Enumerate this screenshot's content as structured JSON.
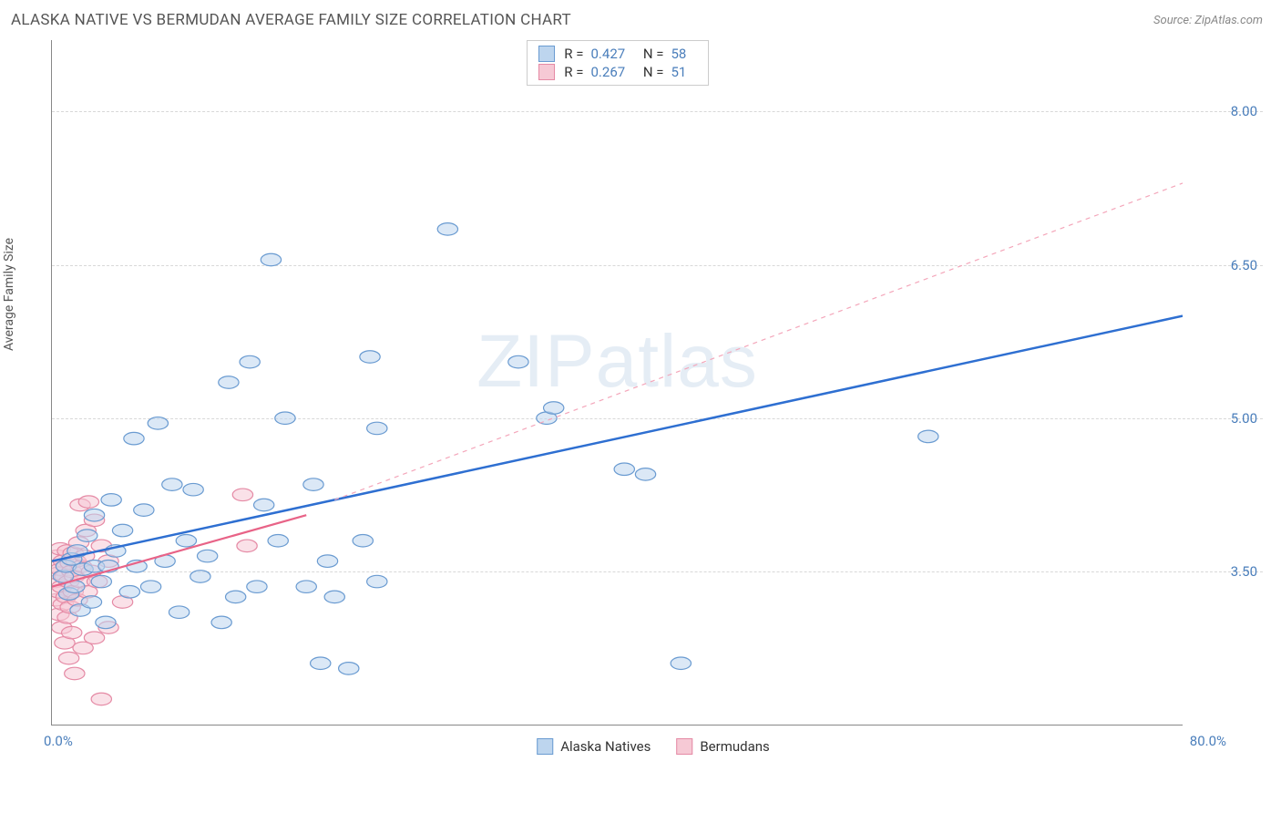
{
  "title": "ALASKA NATIVE VS BERMUDAN AVERAGE FAMILY SIZE CORRELATION CHART",
  "source": "Source: ZipAtlas.com",
  "ylabel": "Average Family Size",
  "watermark": "ZIPatlas",
  "chart": {
    "type": "scatter",
    "xlim": [
      0,
      80
    ],
    "ylim": [
      2.0,
      8.7
    ],
    "xticks": {
      "min_label": "0.0%",
      "max_label": "80.0%"
    },
    "yticks": [
      3.5,
      5.0,
      6.5,
      8.0
    ],
    "grid_color": "#d8d8d8",
    "axis_color": "#888888",
    "background_color": "#ffffff",
    "marker_radius": 9,
    "marker_opacity": 0.55,
    "series": [
      {
        "name": "Alaska Natives",
        "color_fill": "#bdd5ee",
        "color_stroke": "#6a9bd1",
        "r": 0.427,
        "n": 58,
        "trend": {
          "x1": 0,
          "y1": 3.6,
          "x2": 80,
          "y2": 6.0,
          "color": "#2e6fd1",
          "width": 2.5,
          "dash": "none"
        },
        "trend_ext": {
          "x1": 20,
          "y1": 4.2,
          "x2": 80,
          "y2": 7.3,
          "color": "#f4a6ba",
          "width": 1.2,
          "dash": "5,5"
        },
        "points": [
          [
            0.8,
            3.45
          ],
          [
            1.0,
            3.55
          ],
          [
            1.2,
            3.28
          ],
          [
            1.4,
            3.62
          ],
          [
            1.6,
            3.35
          ],
          [
            1.8,
            3.7
          ],
          [
            2.0,
            3.12
          ],
          [
            2.2,
            3.52
          ],
          [
            2.5,
            3.85
          ],
          [
            2.8,
            3.2
          ],
          [
            3.0,
            3.55
          ],
          [
            3.0,
            4.05
          ],
          [
            3.5,
            3.4
          ],
          [
            3.8,
            3.0
          ],
          [
            4.0,
            3.55
          ],
          [
            4.2,
            4.2
          ],
          [
            4.5,
            3.7
          ],
          [
            5.0,
            3.9
          ],
          [
            5.5,
            3.3
          ],
          [
            5.8,
            4.8
          ],
          [
            6.0,
            3.55
          ],
          [
            6.5,
            4.1
          ],
          [
            7.0,
            3.35
          ],
          [
            7.5,
            4.95
          ],
          [
            8.0,
            3.6
          ],
          [
            8.5,
            4.35
          ],
          [
            9.0,
            3.1
          ],
          [
            9.5,
            3.8
          ],
          [
            10.0,
            4.3
          ],
          [
            10.5,
            3.45
          ],
          [
            11.0,
            3.65
          ],
          [
            12.0,
            3.0
          ],
          [
            12.5,
            5.35
          ],
          [
            13.0,
            3.25
          ],
          [
            14.0,
            5.55
          ],
          [
            14.5,
            3.35
          ],
          [
            15.0,
            4.15
          ],
          [
            15.5,
            6.55
          ],
          [
            16.0,
            3.8
          ],
          [
            16.5,
            5.0
          ],
          [
            18.0,
            3.35
          ],
          [
            18.5,
            4.35
          ],
          [
            19.0,
            2.6
          ],
          [
            19.5,
            3.6
          ],
          [
            20.0,
            3.25
          ],
          [
            21.0,
            2.55
          ],
          [
            22.0,
            3.8
          ],
          [
            22.5,
            5.6
          ],
          [
            23.0,
            4.9
          ],
          [
            23.0,
            3.4
          ],
          [
            28.0,
            6.85
          ],
          [
            33.0,
            5.55
          ],
          [
            35.0,
            5.0
          ],
          [
            35.5,
            5.1
          ],
          [
            40.5,
            4.5
          ],
          [
            42.0,
            4.45
          ],
          [
            44.5,
            2.6
          ],
          [
            62.0,
            4.82
          ]
        ]
      },
      {
        "name": "Bermudans",
        "color_fill": "#f6c9d5",
        "color_stroke": "#e58aa5",
        "r": 0.267,
        "n": 51,
        "trend": {
          "x1": 0,
          "y1": 3.35,
          "x2": 18,
          "y2": 4.05,
          "color": "#e86387",
          "width": 2.2,
          "dash": "none"
        },
        "points": [
          [
            0.2,
            3.4
          ],
          [
            0.3,
            3.55
          ],
          [
            0.3,
            3.22
          ],
          [
            0.4,
            3.48
          ],
          [
            0.4,
            3.65
          ],
          [
            0.5,
            3.3
          ],
          [
            0.5,
            3.08
          ],
          [
            0.6,
            3.52
          ],
          [
            0.6,
            3.72
          ],
          [
            0.7,
            3.35
          ],
          [
            0.7,
            2.95
          ],
          [
            0.8,
            3.6
          ],
          [
            0.8,
            3.18
          ],
          [
            0.9,
            3.45
          ],
          [
            0.9,
            2.8
          ],
          [
            1.0,
            3.55
          ],
          [
            1.0,
            3.25
          ],
          [
            1.1,
            3.7
          ],
          [
            1.1,
            3.05
          ],
          [
            1.2,
            3.4
          ],
          [
            1.2,
            2.65
          ],
          [
            1.3,
            3.58
          ],
          [
            1.3,
            3.15
          ],
          [
            1.4,
            3.5
          ],
          [
            1.4,
            2.9
          ],
          [
            1.5,
            3.68
          ],
          [
            1.5,
            3.3
          ],
          [
            1.6,
            3.45
          ],
          [
            1.6,
            2.5
          ],
          [
            1.7,
            3.6
          ],
          [
            1.8,
            3.22
          ],
          [
            1.9,
            3.78
          ],
          [
            2.0,
            3.4
          ],
          [
            2.0,
            4.15
          ],
          [
            2.1,
            3.55
          ],
          [
            2.2,
            2.75
          ],
          [
            2.3,
            3.65
          ],
          [
            2.4,
            3.9
          ],
          [
            2.5,
            3.3
          ],
          [
            2.6,
            4.18
          ],
          [
            2.8,
            3.5
          ],
          [
            3.0,
            2.85
          ],
          [
            3.0,
            4.0
          ],
          [
            3.2,
            3.4
          ],
          [
            3.5,
            2.25
          ],
          [
            3.5,
            3.75
          ],
          [
            4.0,
            2.95
          ],
          [
            4.0,
            3.6
          ],
          [
            5.0,
            3.2
          ],
          [
            13.5,
            4.25
          ],
          [
            13.8,
            3.75
          ]
        ]
      }
    ],
    "legend_top": [
      {
        "swatch_fill": "#bdd5ee",
        "swatch_stroke": "#6a9bd1",
        "r_label": "R =",
        "r_val": "0.427",
        "n_label": "N =",
        "n_val": "58"
      },
      {
        "swatch_fill": "#f6c9d5",
        "swatch_stroke": "#e58aa5",
        "r_label": "R =",
        "r_val": "0.267",
        "n_label": "N =",
        "n_val": "51"
      }
    ],
    "legend_bottom": [
      {
        "swatch_fill": "#bdd5ee",
        "swatch_stroke": "#6a9bd1",
        "label": "Alaska Natives"
      },
      {
        "swatch_fill": "#f6c9d5",
        "swatch_stroke": "#e58aa5",
        "label": "Bermudans"
      }
    ]
  }
}
